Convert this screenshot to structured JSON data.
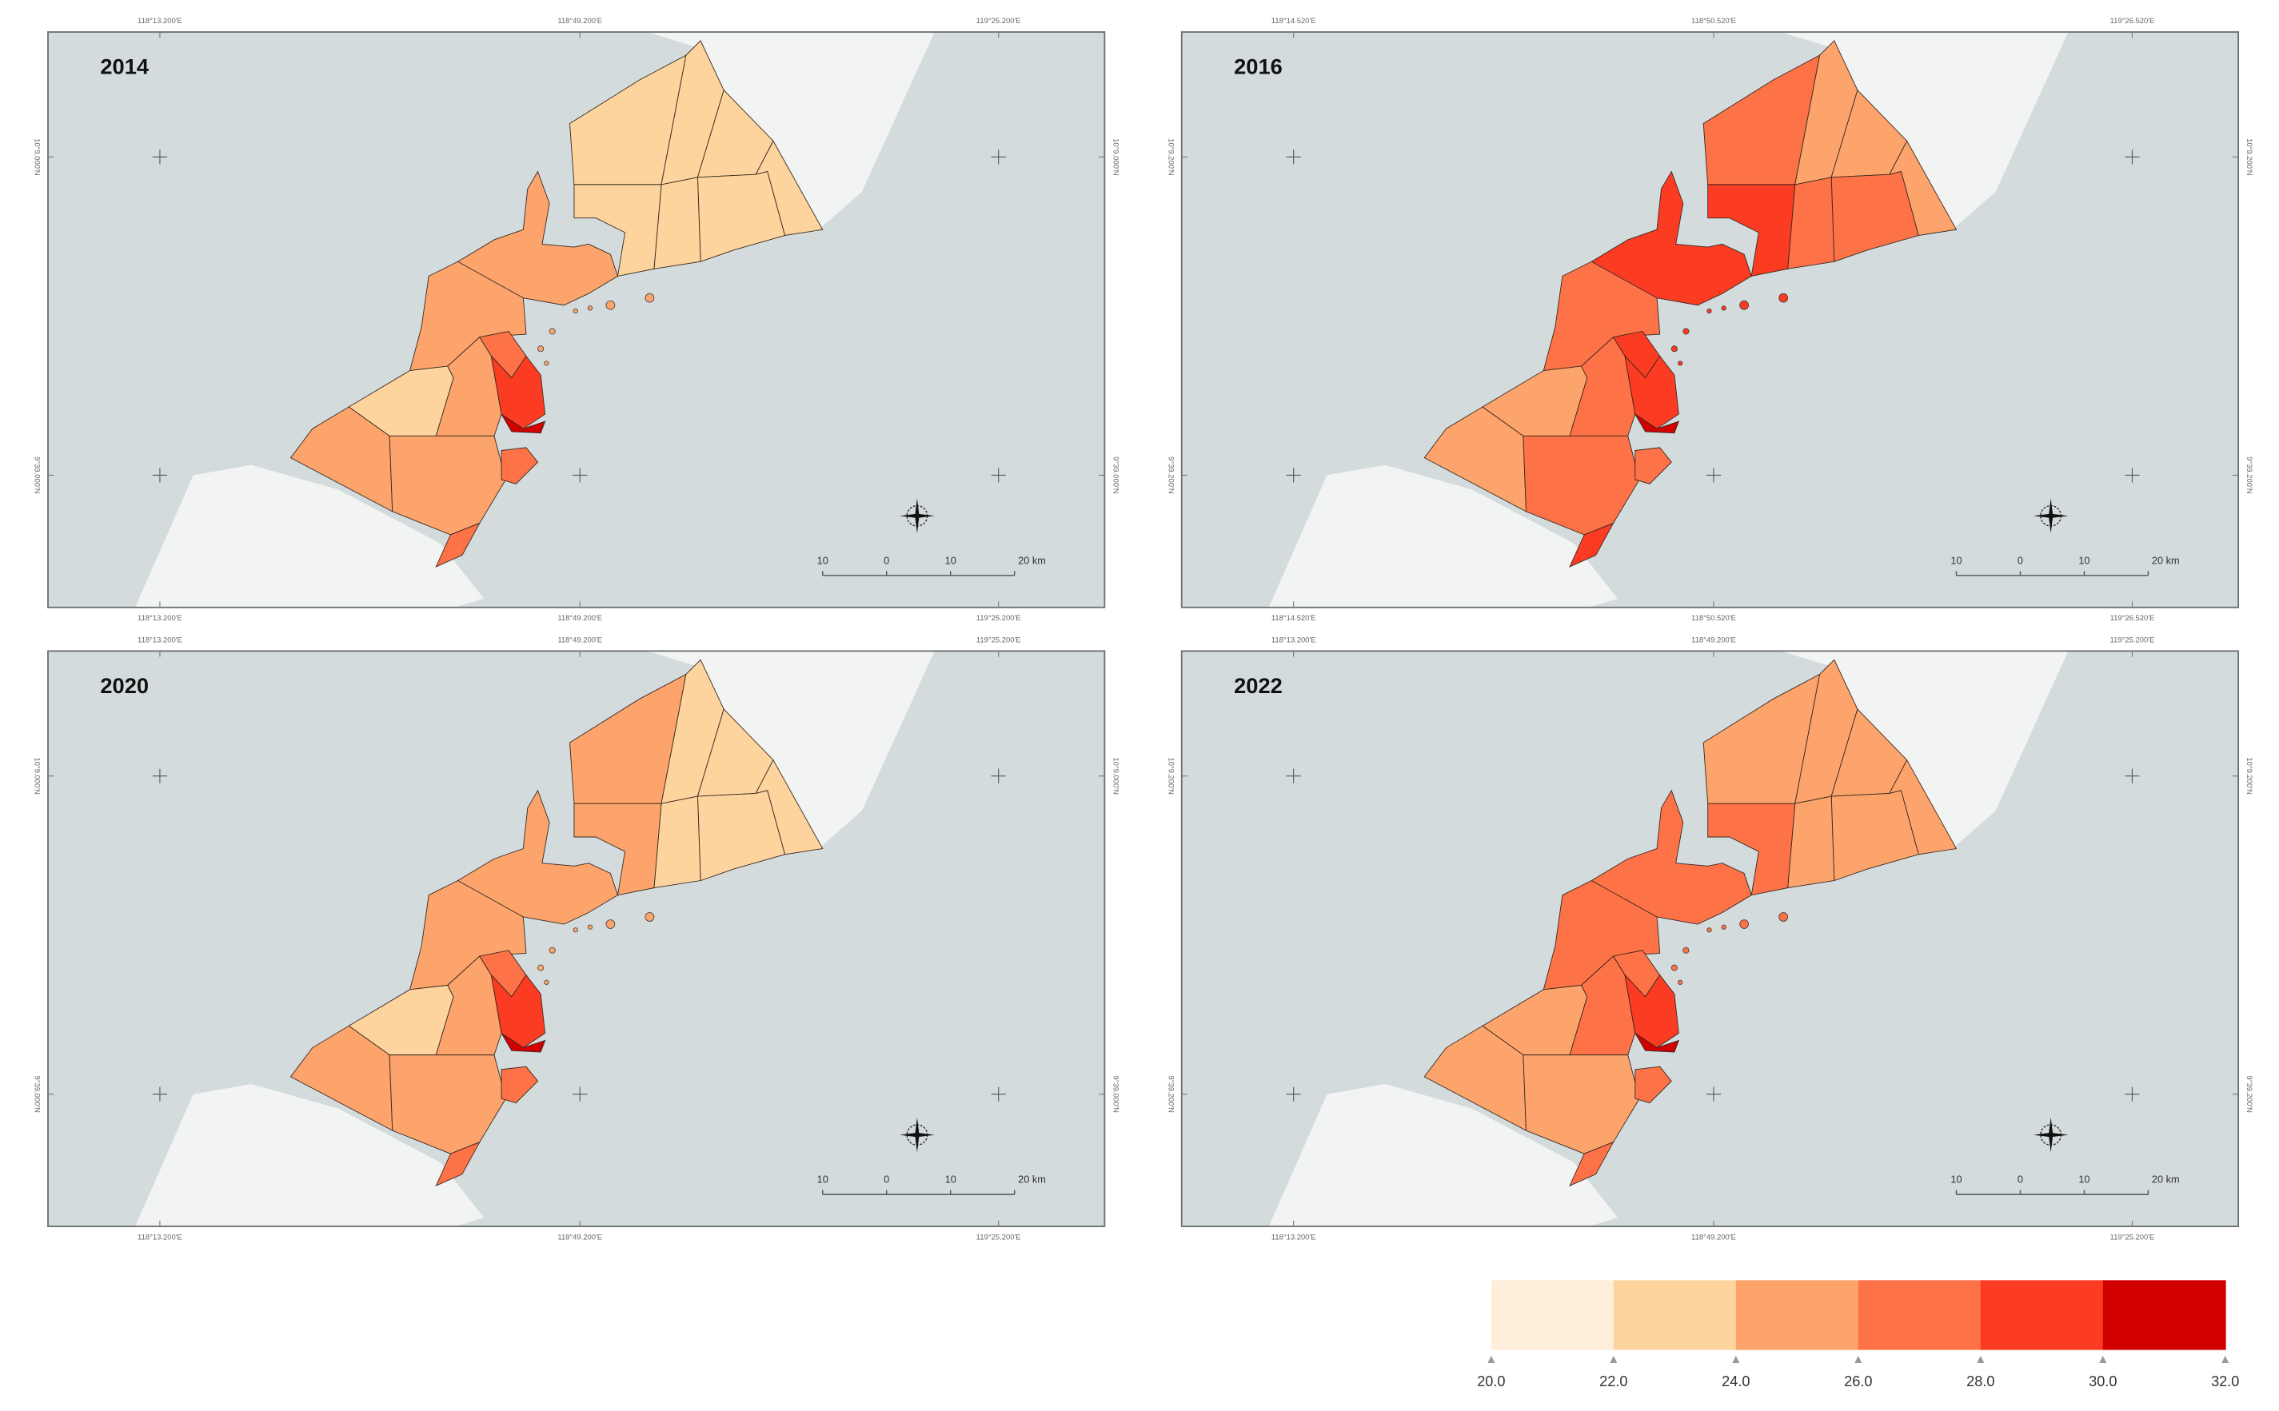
{
  "legend": {
    "breaks": [
      "20.0",
      "22.0",
      "24.0",
      "26.0",
      "28.0",
      "30.0",
      "32.0"
    ],
    "colors": [
      "#feedd8",
      "#fdd49e",
      "#fda46c",
      "#fd7247",
      "#fc3b23",
      "#d30000"
    ]
  },
  "colors": {
    "sea": "#d3dbdd",
    "land": "#f2f4f3",
    "frame": "#6b6f70",
    "outline": "#3a2a20"
  },
  "scale_bar": {
    "labels": [
      "10",
      "0",
      "10",
      "20 km"
    ]
  },
  "panels": [
    {
      "year": "2014",
      "lon_top": [
        "118°13.200'E",
        "118°49.200'E",
        "119°25.200'E"
      ],
      "lon_bottom": [
        "118°13.200'E",
        "118°49.200'E",
        "119°25.200'E"
      ],
      "lat_left": [
        "10°9.000'N",
        "9°39.000'N"
      ],
      "lat_right": [
        "10°9.000'N",
        "9°39.000'N"
      ],
      "fill_class": [
        1,
        1,
        1,
        1,
        1,
        1,
        1,
        2,
        2,
        1,
        2,
        2,
        2,
        3,
        3,
        4,
        5,
        3
      ]
    },
    {
      "year": "2016",
      "lon_top": [
        "118°14.520'E",
        "118°50.520'E",
        "119°26.520'E"
      ],
      "lon_bottom": [
        "118°14.520'E",
        "118°50.520'E",
        "119°26.520'E"
      ],
      "lat_left": [
        "10°9.200'N",
        "9°39.200'N"
      ],
      "lat_right": [
        "10°9.200'N",
        "9°39.200'N"
      ],
      "fill_class": [
        3,
        2,
        2,
        2,
        3,
        3,
        4,
        4,
        3,
        2,
        2,
        3,
        3,
        4,
        4,
        4,
        5,
        3
      ]
    },
    {
      "year": "2020",
      "lon_top": [
        "118°13.200'E",
        "118°49.200'E",
        "119°25.200'E"
      ],
      "lon_bottom": [
        "118°13.200'E",
        "118°49.200'E",
        "119°25.200'E"
      ],
      "lat_left": [
        "10°9.000'N",
        "9°39.000'N"
      ],
      "lat_right": [
        "10°9.000'N",
        "9°39.000'N"
      ],
      "fill_class": [
        2,
        1,
        1,
        1,
        1,
        1,
        2,
        2,
        2,
        1,
        2,
        2,
        2,
        3,
        3,
        4,
        5,
        3
      ]
    },
    {
      "year": "2022",
      "lon_top": [
        "118°13.200'E",
        "118°49.200'E",
        "119°25.200'E"
      ],
      "lon_bottom": [
        "118°13.200'E",
        "118°49.200'E",
        "119°25.200'E"
      ],
      "lat_left": [
        "10°9.200'N",
        "9°39.200'N"
      ],
      "lat_right": [
        "10°9.200'N",
        "9°39.200'N"
      ],
      "fill_class": [
        2,
        2,
        2,
        2,
        2,
        2,
        3,
        3,
        3,
        2,
        2,
        3,
        2,
        3,
        3,
        4,
        5,
        3
      ]
    }
  ]
}
